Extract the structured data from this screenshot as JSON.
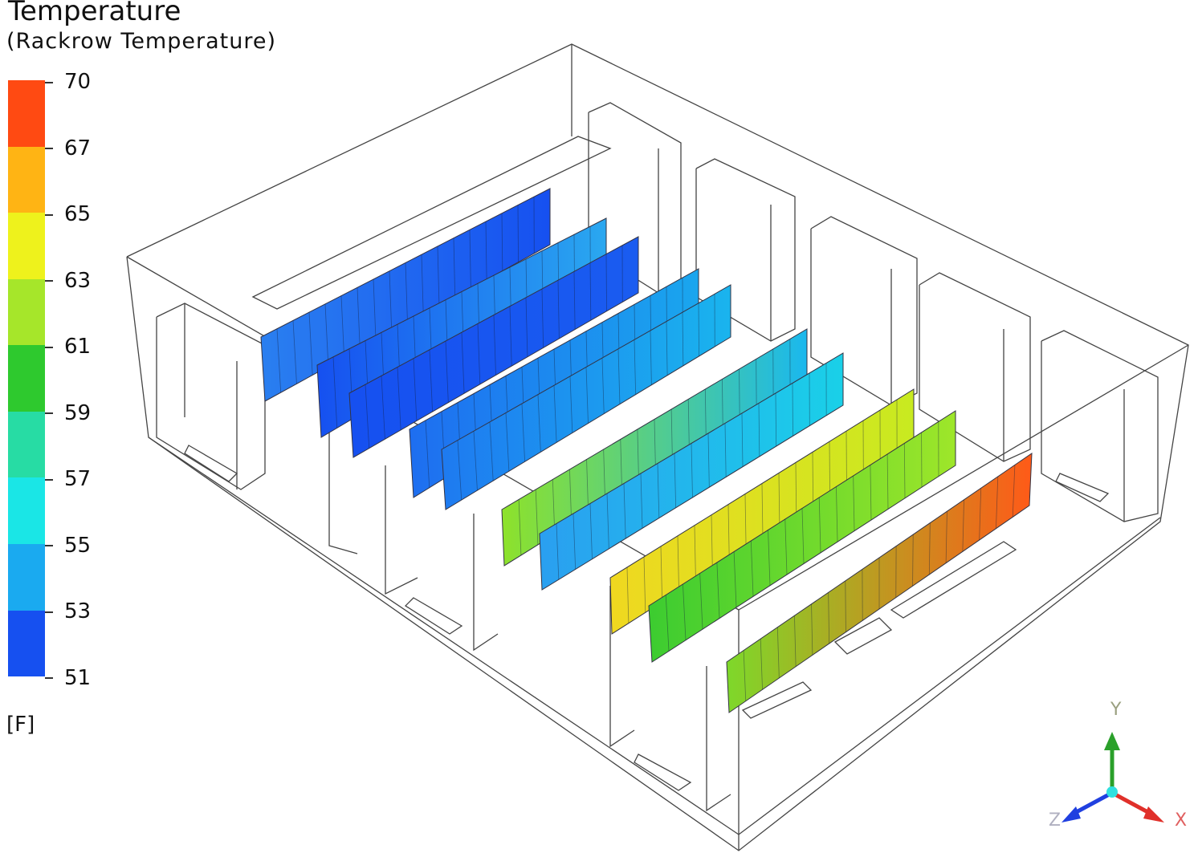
{
  "title": "Temperature",
  "subtitle": "(Rackrow Temperature)",
  "legend": {
    "ticks": [
      "70",
      "67",
      "65",
      "63",
      "61",
      "59",
      "57",
      "55",
      "53",
      "51"
    ],
    "band_colors": [
      "#ff4a12",
      "#ffb414",
      "#eef21c",
      "#a6e62a",
      "#2ec92e",
      "#27dca4",
      "#1ae6e6",
      "#1aaaf0",
      "#1650f0"
    ],
    "unit": "[F]"
  },
  "panels": [
    {
      "color_start": "#2a7ff0",
      "color_end": "#1650f0"
    },
    {
      "color_start": "#1650f0",
      "color_end": "#2aa8f0"
    },
    {
      "color_start": "#1650f0",
      "color_end": "#1a5cf0"
    },
    {
      "color_start": "#1e6ef0",
      "color_end": "#1aa6ee"
    },
    {
      "color_start": "#1e7af0",
      "color_end": "#1ab4ee"
    },
    {
      "color_start": "#8ee22a",
      "color_end": "#1ab8ee"
    },
    {
      "color_start": "#2a9ff0",
      "color_end": "#1ad0e8"
    },
    {
      "color_start": "#f0d820",
      "color_end": "#c8ea20"
    },
    {
      "color_start": "#3ccc30",
      "color_end": "#9ee62a"
    },
    {
      "color_start": "#7ed82a",
      "color_end": "#ff5a18"
    }
  ],
  "axes": {
    "x": "X",
    "y": "Y",
    "z": "Z",
    "x_color": "#e0302a",
    "y_color": "#2aa02a",
    "z_color": "#2040e0"
  }
}
